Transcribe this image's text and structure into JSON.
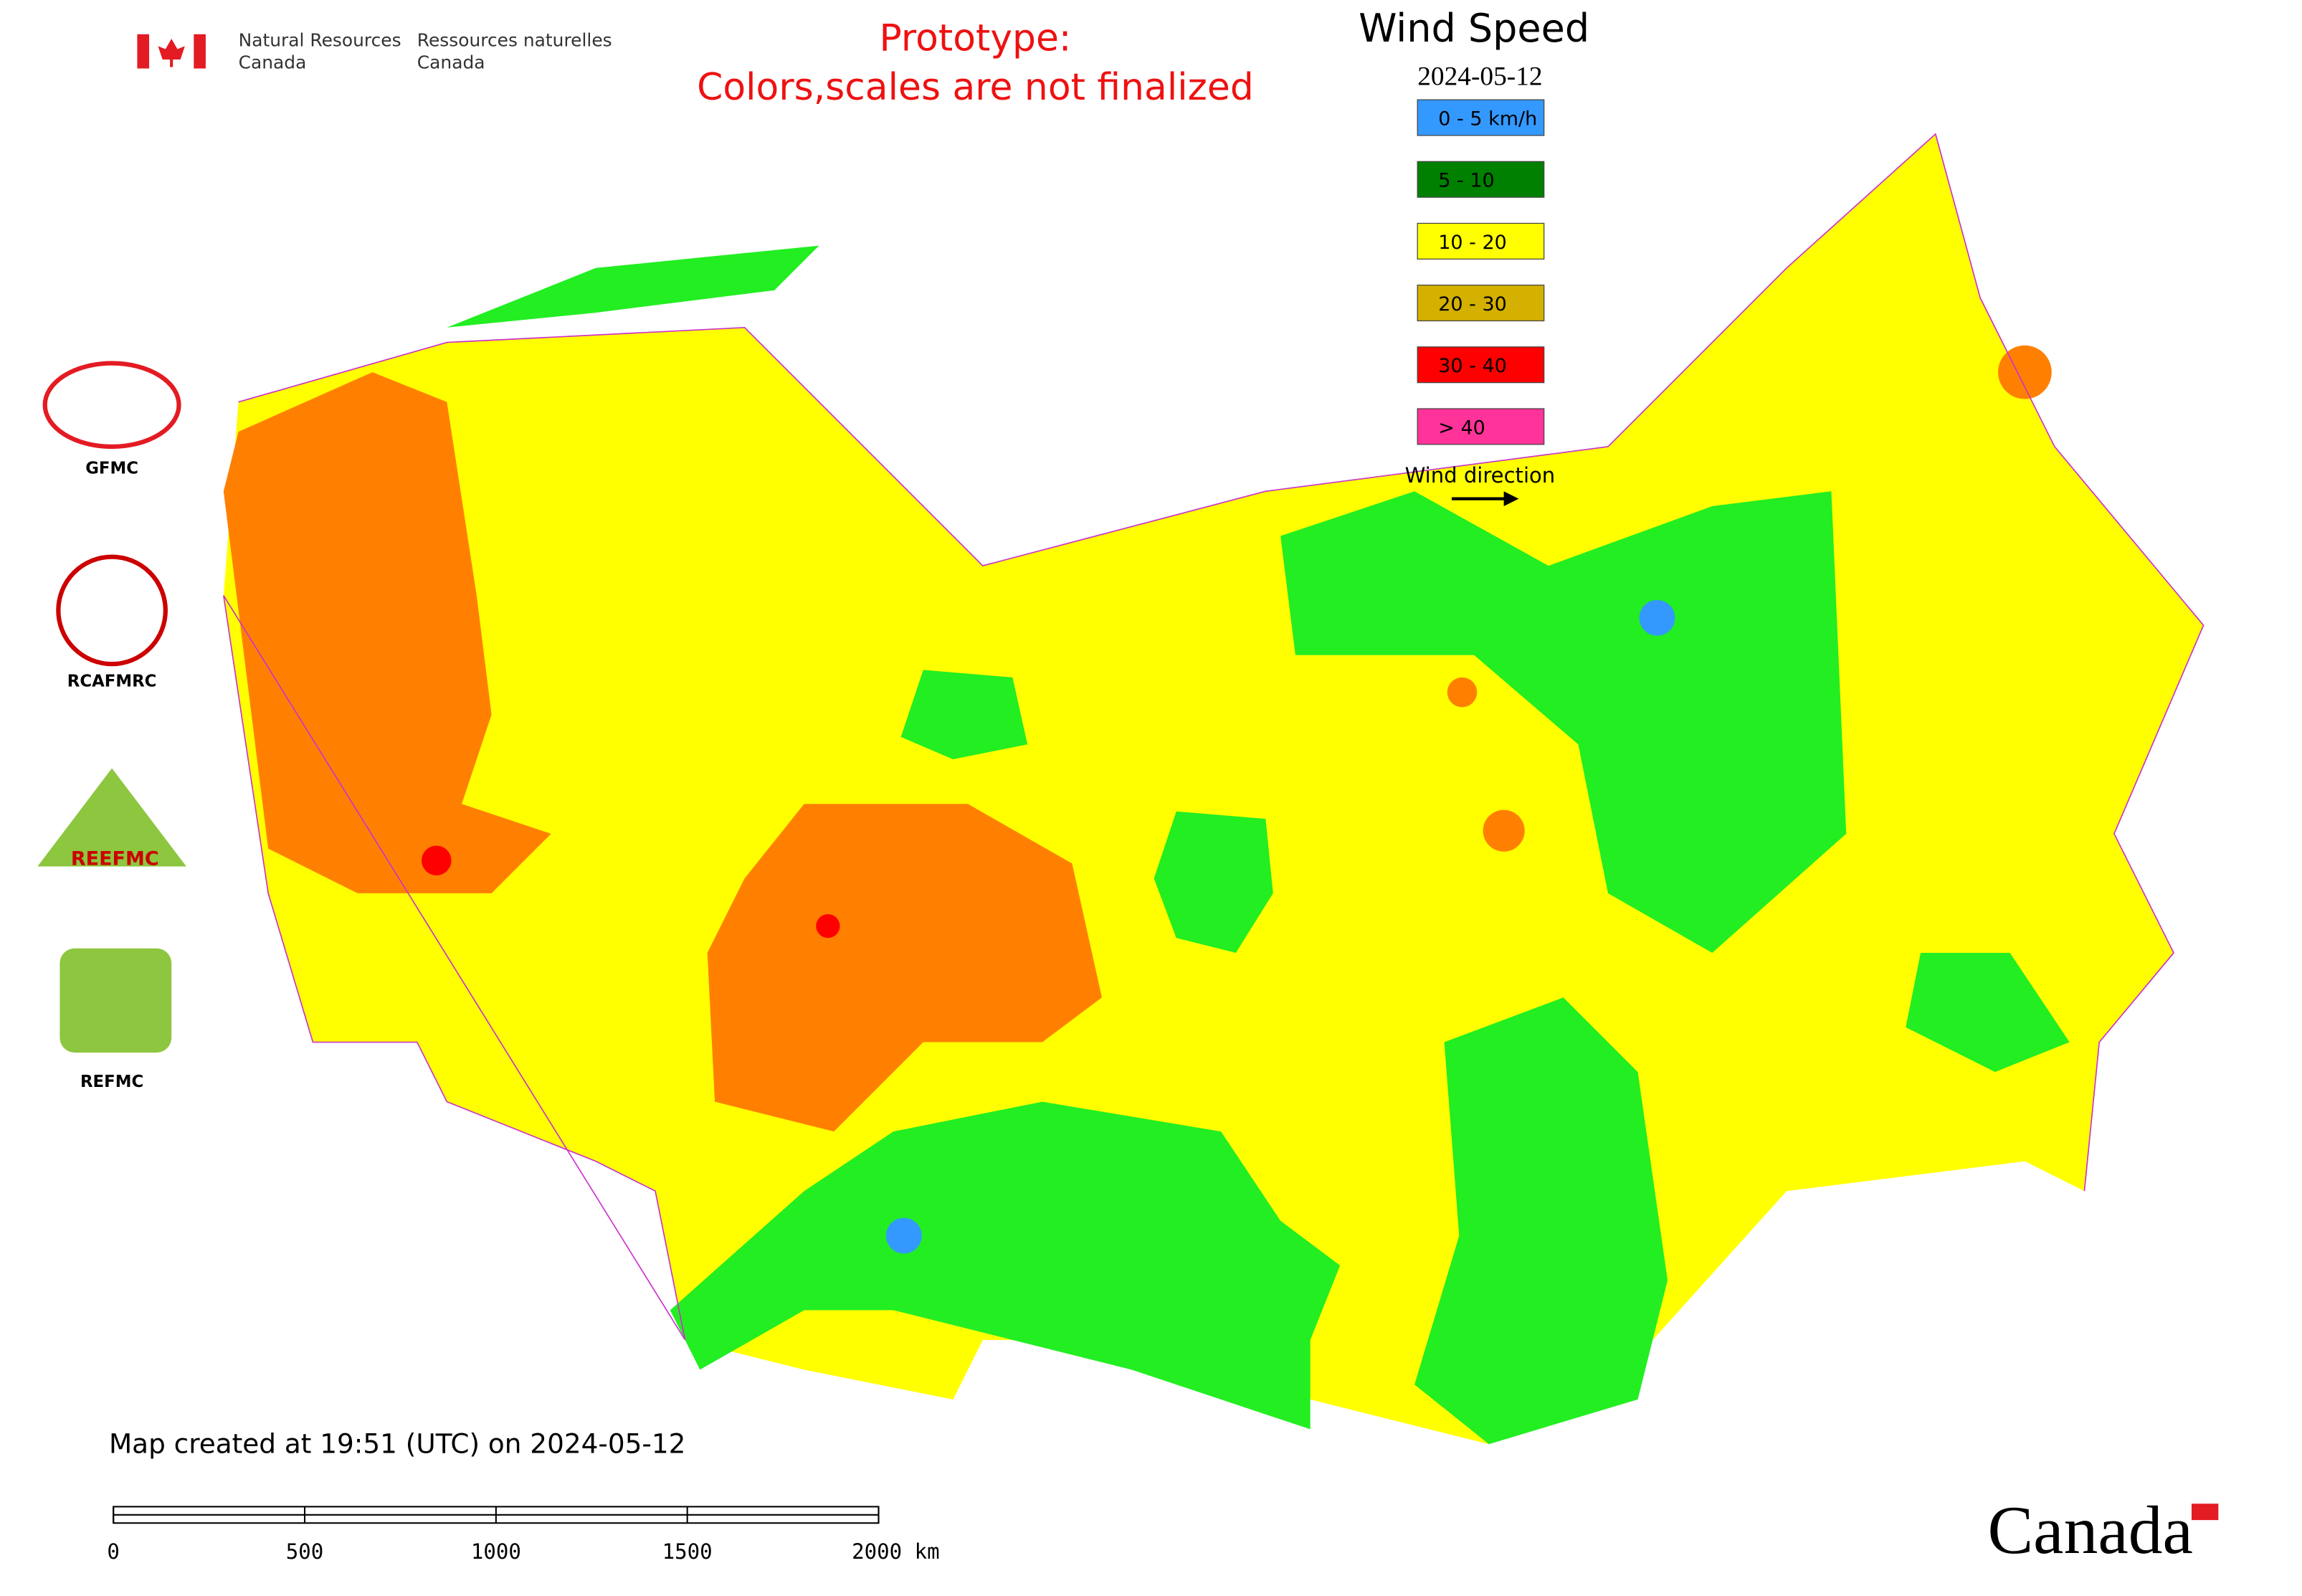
{
  "header": {
    "agency_en_1": "Natural Resources",
    "agency_en_2": "Canada",
    "agency_fr_1": "Ressources naturelles",
    "agency_fr_2": "Canada",
    "notice_1": "Prototype:",
    "notice_2": "Colors,scales are not finalized"
  },
  "legend": {
    "title": "Wind Speed",
    "date": "2024-05-12",
    "items": [
      {
        "label": "0 - 5 km/h",
        "color": "#3399ff"
      },
      {
        "label": "5 - 10",
        "color": "#008000"
      },
      {
        "label": "10 - 20",
        "color": "#ffff00"
      },
      {
        "label": "20 - 30",
        "color": "#d4b000"
      },
      {
        "label": "30 - 40",
        "color": "#ff0000"
      },
      {
        "label": "> 40",
        "color": "#ff3399"
      }
    ],
    "direction_label": "Wind direction"
  },
  "logos": [
    "GFMC",
    "RCAFMRC",
    "REEFMC",
    "REFMC"
  ],
  "footer": {
    "created": "Map created at 19:51 (UTC) on 2024-05-12",
    "scale_labels": [
      "0",
      "500",
      "1000",
      "1500",
      "2000 km"
    ],
    "wordmark": "Canada"
  }
}
